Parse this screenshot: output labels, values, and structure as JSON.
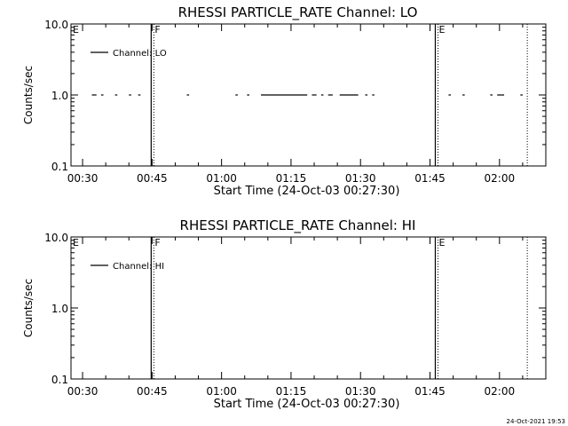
{
  "footer": {
    "stamp": "24-Oct-2021 19:53"
  },
  "chart_data": [
    {
      "type": "line",
      "title": "RHESSI PARTICLE_RATE Channel: LO",
      "xlabel": "Start Time (24-Oct-03 00:27:30)",
      "ylabel": "Counts/sec",
      "yscale": "log",
      "ylim": [
        0.1,
        10.0
      ],
      "xlim": [
        "00:27:30",
        "02:10:00"
      ],
      "xticks": [
        "00:30",
        "00:45",
        "01:00",
        "01:15",
        "01:30",
        "01:45",
        "02:00"
      ],
      "yticks": [
        "0.1",
        "1.0",
        "10.0"
      ],
      "legend": {
        "position": "top-left"
      },
      "series": [
        {
          "name": "Channel: LO",
          "segments": [
            [
              "00:32:00",
              "00:33:00"
            ],
            [
              "00:34:00",
              "00:34:30"
            ],
            [
              "00:37:00",
              "00:37:30"
            ],
            [
              "00:40:00",
              "00:40:30"
            ],
            [
              "00:42:00",
              "00:42:30"
            ],
            [
              "00:52:30",
              "00:53:00"
            ],
            [
              "01:03:00",
              "01:03:30"
            ],
            [
              "01:05:30",
              "01:06:00"
            ],
            [
              "01:08:30",
              "01:18:30"
            ],
            [
              "01:19:30",
              "01:20:30"
            ],
            [
              "01:21:30",
              "01:22:00"
            ],
            [
              "01:23:00",
              "01:24:00"
            ],
            [
              "01:25:30",
              "01:29:30"
            ],
            [
              "01:31:00",
              "01:31:30"
            ],
            [
              "01:32:30",
              "01:33:00"
            ],
            [
              "01:49:00",
              "01:49:30"
            ],
            [
              "01:52:00",
              "01:52:30"
            ],
            [
              "01:58:00",
              "01:58:30"
            ],
            [
              "01:59:30",
              "02:01:00"
            ],
            [
              "02:04:30",
              "02:05:00"
            ]
          ],
          "y": 1.0
        }
      ],
      "annotations": [
        {
          "label": "E",
          "time": "00:27:30",
          "style": "none"
        },
        {
          "label": "F",
          "time": "00:45:00",
          "style": "solid+dotted"
        },
        {
          "label": "E",
          "time": "01:46:20",
          "style": "solid+dotted"
        },
        {
          "label": "",
          "time": "02:06:00",
          "style": "dotted"
        }
      ]
    },
    {
      "type": "line",
      "title": "RHESSI PARTICLE_RATE Channel: HI",
      "xlabel": "Start Time (24-Oct-03 00:27:30)",
      "ylabel": "Counts/sec",
      "yscale": "log",
      "ylim": [
        0.1,
        10.0
      ],
      "xlim": [
        "00:27:30",
        "02:10:00"
      ],
      "xticks": [
        "00:30",
        "00:45",
        "01:00",
        "01:15",
        "01:30",
        "01:45",
        "02:00"
      ],
      "yticks": [
        "0.1",
        "1.0",
        "10.0"
      ],
      "legend": {
        "position": "top-left"
      },
      "series": [
        {
          "name": "Channel: HI",
          "segments": [],
          "y": null
        }
      ],
      "annotations": [
        {
          "label": "E",
          "time": "00:27:30",
          "style": "none"
        },
        {
          "label": "F",
          "time": "00:45:00",
          "style": "solid+dotted"
        },
        {
          "label": "E",
          "time": "01:46:20",
          "style": "solid+dotted"
        },
        {
          "label": "",
          "time": "02:06:00",
          "style": "dotted"
        }
      ]
    }
  ]
}
